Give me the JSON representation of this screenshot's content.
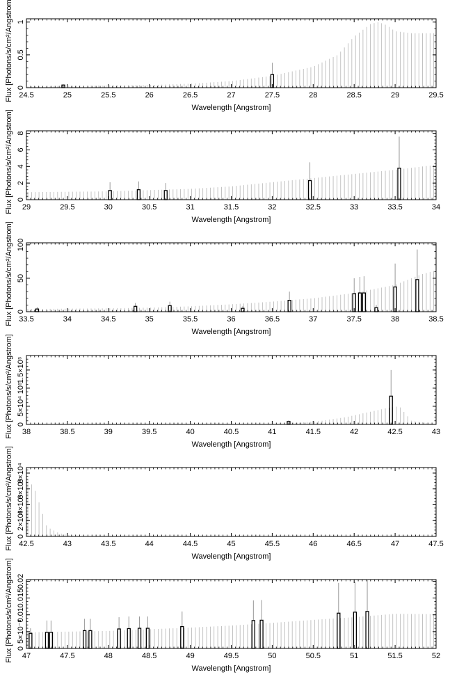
{
  "chart_data": [
    {
      "type": "bar",
      "xlabel": "Wavelength [Angstrom]",
      "ylabel": "Flux [Photons/s/cm²/Angstrom]",
      "xlim": [
        24.5,
        29.5
      ],
      "ylim": [
        0,
        1.05
      ],
      "xticks": [
        "24.5",
        "25",
        "25.5",
        "26",
        "26.5",
        "27",
        "27.5",
        "28",
        "28.5",
        "29",
        "29.5"
      ],
      "yticks": [
        {
          "v": 0,
          "l": "0"
        },
        {
          "v": 0.5,
          "l": "0.5"
        },
        {
          "v": 1,
          "l": "1"
        }
      ],
      "continuum": [
        [
          24.5,
          0.02
        ],
        [
          26.0,
          0.04
        ],
        [
          26.5,
          0.06
        ],
        [
          27.0,
          0.1
        ],
        [
          27.5,
          0.18
        ],
        [
          28.0,
          0.32
        ],
        [
          28.3,
          0.5
        ],
        [
          28.5,
          0.78
        ],
        [
          28.7,
          0.97
        ],
        [
          28.8,
          1.0
        ],
        [
          28.9,
          0.95
        ],
        [
          29.0,
          0.86
        ],
        [
          29.2,
          0.83
        ],
        [
          29.5,
          0.83
        ]
      ],
      "lines": [
        {
          "x": 24.95,
          "y": 0.04,
          "err": 0.01
        },
        {
          "x": 27.5,
          "y": 0.2,
          "err": 0.18
        }
      ]
    },
    {
      "type": "bar",
      "xlabel": "Wavelength [Angstrom]",
      "ylabel": "Flux [Photons/s/cm²/Angstrom]",
      "xlim": [
        29,
        34
      ],
      "ylim": [
        0,
        8.3
      ],
      "xticks": [
        "29",
        "29.5",
        "30",
        "30.5",
        "31",
        "31.5",
        "32",
        "32.5",
        "33",
        "33.5",
        "34"
      ],
      "yticks": [
        {
          "v": 0,
          "l": "0"
        },
        {
          "v": 2,
          "l": "2"
        },
        {
          "v": 4,
          "l": "4"
        },
        {
          "v": 6,
          "l": "6"
        },
        {
          "v": 8,
          "l": "8"
        }
      ],
      "continuum": [
        [
          29.0,
          0.9
        ],
        [
          30.0,
          1.0
        ],
        [
          31.0,
          1.3
        ],
        [
          31.5,
          1.6
        ],
        [
          32.0,
          2.1
        ],
        [
          32.5,
          2.6
        ],
        [
          33.0,
          3.1
        ],
        [
          33.5,
          3.6
        ],
        [
          34.0,
          4.2
        ]
      ],
      "lines": [
        {
          "x": 30.02,
          "y": 1.1,
          "err": 1.0
        },
        {
          "x": 30.37,
          "y": 1.2,
          "err": 1.0
        },
        {
          "x": 30.7,
          "y": 1.1,
          "err": 0.9
        },
        {
          "x": 32.46,
          "y": 2.3,
          "err": 2.2
        },
        {
          "x": 33.55,
          "y": 3.8,
          "err": 3.8
        }
      ]
    },
    {
      "type": "bar",
      "xlabel": "Wavelength [Angstrom]",
      "ylabel": "Flux [Photons/s/cm²/Angstrom]",
      "xlim": [
        33.5,
        38.5
      ],
      "ylim": [
        0,
        103
      ],
      "xticks": [
        "33.5",
        "34",
        "34.5",
        "35",
        "35.5",
        "36",
        "36.5",
        "37",
        "37.5",
        "38",
        "38.5"
      ],
      "yticks": [
        {
          "v": 0,
          "l": "0"
        },
        {
          "v": 50,
          "l": "50"
        },
        {
          "v": 100,
          "l": "100"
        }
      ],
      "continuum": [
        [
          33.5,
          4
        ],
        [
          34.5,
          5
        ],
        [
          35.0,
          6
        ],
        [
          35.5,
          8
        ],
        [
          36.0,
          11
        ],
        [
          36.5,
          15
        ],
        [
          37.0,
          20
        ],
        [
          37.5,
          28
        ],
        [
          38.0,
          40
        ],
        [
          38.3,
          55
        ],
        [
          38.5,
          62
        ]
      ],
      "lines": [
        {
          "x": 33.63,
          "y": 4,
          "err": 3
        },
        {
          "x": 34.83,
          "y": 8,
          "err": 5
        },
        {
          "x": 35.25,
          "y": 9,
          "err": 6
        },
        {
          "x": 36.14,
          "y": 5,
          "err": 3
        },
        {
          "x": 36.71,
          "y": 17,
          "err": 13
        },
        {
          "x": 37.5,
          "y": 27,
          "err": 23
        },
        {
          "x": 37.57,
          "y": 28,
          "err": 24
        },
        {
          "x": 37.62,
          "y": 28,
          "err": 25
        },
        {
          "x": 37.77,
          "y": 6,
          "err": 4
        },
        {
          "x": 38.0,
          "y": 37,
          "err": 35
        },
        {
          "x": 38.27,
          "y": 48,
          "err": 45
        }
      ]
    },
    {
      "type": "bar",
      "xlabel": "Wavelength [Angstrom]",
      "ylabel": "Flux [Photons/s/cm²/Angstrom]",
      "xlim": [
        38,
        43
      ],
      "ylim": [
        0,
        190000
      ],
      "xticks": [
        "38",
        "38.5",
        "39",
        "39.5",
        "40",
        "40.5",
        "41",
        "41.5",
        "42",
        "42.5",
        "43"
      ],
      "yticks": [
        {
          "v": 0,
          "l": "0"
        },
        {
          "v": 50000,
          "l": "5×10⁴"
        },
        {
          "v": 100000,
          "l": "10⁵"
        },
        {
          "v": 150000,
          "l": "1.5×10⁵"
        }
      ],
      "continuum": [
        [
          38.0,
          0
        ],
        [
          40.5,
          200
        ],
        [
          41.0,
          1500
        ],
        [
          41.3,
          4000
        ],
        [
          41.6,
          10000
        ],
        [
          41.9,
          20000
        ],
        [
          42.2,
          35000
        ],
        [
          42.4,
          45000
        ],
        [
          42.55,
          50000
        ],
        [
          42.7,
          10000
        ],
        [
          43.0,
          0
        ]
      ],
      "lines": [
        {
          "x": 41.2,
          "y": 8000,
          "err": 3000
        },
        {
          "x": 42.45,
          "y": 78000,
          "err": 72000
        }
      ]
    },
    {
      "type": "bar",
      "xlabel": "Wavelength [Angstrom]",
      "ylabel": "Flux [Photons/s/cm²/Angstrom]",
      "xlim": [
        42.5,
        47.5
      ],
      "ylim": [
        0,
        87000
      ],
      "xticks": [
        "42.5",
        "43",
        "43.5",
        "44",
        "44.5",
        "45",
        "45.5",
        "46",
        "46.5",
        "47",
        "47.5"
      ],
      "yticks": [
        {
          "v": 0,
          "l": "0"
        },
        {
          "v": 20000,
          "l": "2×10⁴"
        },
        {
          "v": 40000,
          "l": "4×10⁴"
        },
        {
          "v": 60000,
          "l": "6×10⁴"
        },
        {
          "v": 80000,
          "l": "8×10⁴"
        }
      ],
      "continuum": [
        [
          42.52,
          72000
        ],
        [
          42.6,
          60000
        ],
        [
          42.75,
          12000
        ],
        [
          42.9,
          4000
        ],
        [
          43.1,
          0
        ],
        [
          47.5,
          0
        ]
      ],
      "lines": []
    },
    {
      "type": "bar",
      "xlabel": "Wavelength [Angstrom]",
      "ylabel": "Flux [Photons/s/cm²/Angstrom]",
      "xlim": [
        47,
        52
      ],
      "ylim": [
        0,
        0.0205
      ],
      "xticks": [
        "47",
        "47.5",
        "48",
        "48.5",
        "49",
        "49.5",
        "50",
        "50.5",
        "51",
        "51.5",
        "52"
      ],
      "yticks": [
        {
          "v": 0,
          "l": "0"
        },
        {
          "v": 0.005,
          "l": "5×10⁻³"
        },
        {
          "v": 0.01,
          "l": "0.01"
        },
        {
          "v": 0.015,
          "l": "0.015"
        },
        {
          "v": 0.02,
          "l": "0.02"
        }
      ],
      "continuum": [
        [
          47.0,
          0.0048
        ],
        [
          48.0,
          0.0052
        ],
        [
          49.0,
          0.0062
        ],
        [
          49.5,
          0.0068
        ],
        [
          50.0,
          0.0076
        ],
        [
          50.5,
          0.0085
        ],
        [
          51.0,
          0.0093
        ],
        [
          51.5,
          0.0103
        ],
        [
          52.0,
          0.0102
        ]
      ],
      "lines": [
        {
          "x": 47.05,
          "y": 0.0045,
          "err": 0.0015
        },
        {
          "x": 47.25,
          "y": 0.0048,
          "err": 0.0035
        },
        {
          "x": 47.3,
          "y": 0.0048,
          "err": 0.0035
        },
        {
          "x": 47.71,
          "y": 0.0053,
          "err": 0.0035
        },
        {
          "x": 47.78,
          "y": 0.0053,
          "err": 0.0035
        },
        {
          "x": 48.13,
          "y": 0.0058,
          "err": 0.0035
        },
        {
          "x": 48.25,
          "y": 0.0059,
          "err": 0.0036
        },
        {
          "x": 48.38,
          "y": 0.006,
          "err": 0.0035
        },
        {
          "x": 48.48,
          "y": 0.006,
          "err": 0.0035
        },
        {
          "x": 48.9,
          "y": 0.0065,
          "err": 0.0045
        },
        {
          "x": 49.77,
          "y": 0.0083,
          "err": 0.006
        },
        {
          "x": 49.87,
          "y": 0.0084,
          "err": 0.006
        },
        {
          "x": 50.81,
          "y": 0.0105,
          "err": 0.009
        },
        {
          "x": 51.01,
          "y": 0.0108,
          "err": 0.009
        },
        {
          "x": 51.16,
          "y": 0.011,
          "err": 0.0095
        }
      ]
    }
  ]
}
